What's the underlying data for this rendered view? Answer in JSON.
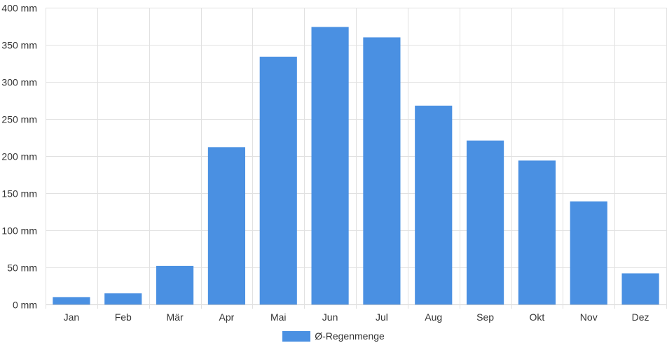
{
  "chart_data": {
    "type": "bar",
    "categories": [
      "Jan",
      "Feb",
      "Mär",
      "Apr",
      "Mai",
      "Jun",
      "Jul",
      "Aug",
      "Sep",
      "Okt",
      "Nov",
      "Dez"
    ],
    "series": [
      {
        "name": "Ø-Regenmenge",
        "values": [
          10,
          15,
          52,
          212,
          334,
          374,
          360,
          268,
          221,
          194,
          139,
          42
        ]
      }
    ],
    "ylim": [
      0,
      400
    ],
    "yticks": [
      0,
      50,
      100,
      150,
      200,
      250,
      300,
      350,
      400
    ],
    "yunit": "mm",
    "grid": true,
    "legend_position": "bottom",
    "colors": {
      "bar": "#4a90e2",
      "grid": "#e1e1e1",
      "axis": "#cccccc",
      "text": "#333333"
    }
  }
}
